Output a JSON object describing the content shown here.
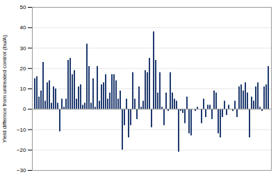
{
  "chart_data": {
    "type": "bar",
    "values": [
      15,
      16,
      6,
      9,
      23,
      4,
      13,
      14,
      3,
      11,
      10,
      3,
      -11,
      5,
      1,
      5,
      24,
      25,
      17,
      19,
      5,
      11,
      12,
      2,
      3,
      32,
      21,
      3,
      15,
      1,
      21,
      4,
      12,
      13,
      17,
      5,
      8,
      17,
      17,
      14,
      5,
      9,
      -20,
      -8,
      5,
      -14,
      -8,
      18,
      5,
      -5,
      11,
      1,
      4,
      19,
      18,
      25,
      -9,
      38,
      24,
      8,
      18,
      1,
      -8,
      8,
      -1,
      18,
      8,
      5,
      4,
      -21,
      -1,
      -2,
      -7,
      6,
      -12,
      -13,
      0,
      -1,
      1,
      0,
      -7,
      5,
      -4,
      2,
      2,
      -5,
      9,
      8,
      -12,
      -14,
      -4,
      4,
      -3,
      2,
      0,
      -1,
      4,
      -4,
      11,
      12,
      9,
      13,
      8,
      -14,
      6,
      4,
      11,
      13,
      1,
      -1,
      11,
      12,
      21
    ],
    "color": "#1f3a6e",
    "ylabel": "Yield differnce from untreated control (bu/A)",
    "ylim": [
      -30,
      50
    ],
    "yticks": [
      -30,
      -20,
      -10,
      0,
      10,
      20,
      30,
      40,
      50
    ],
    "grid": true,
    "tick_labels": "y"
  }
}
